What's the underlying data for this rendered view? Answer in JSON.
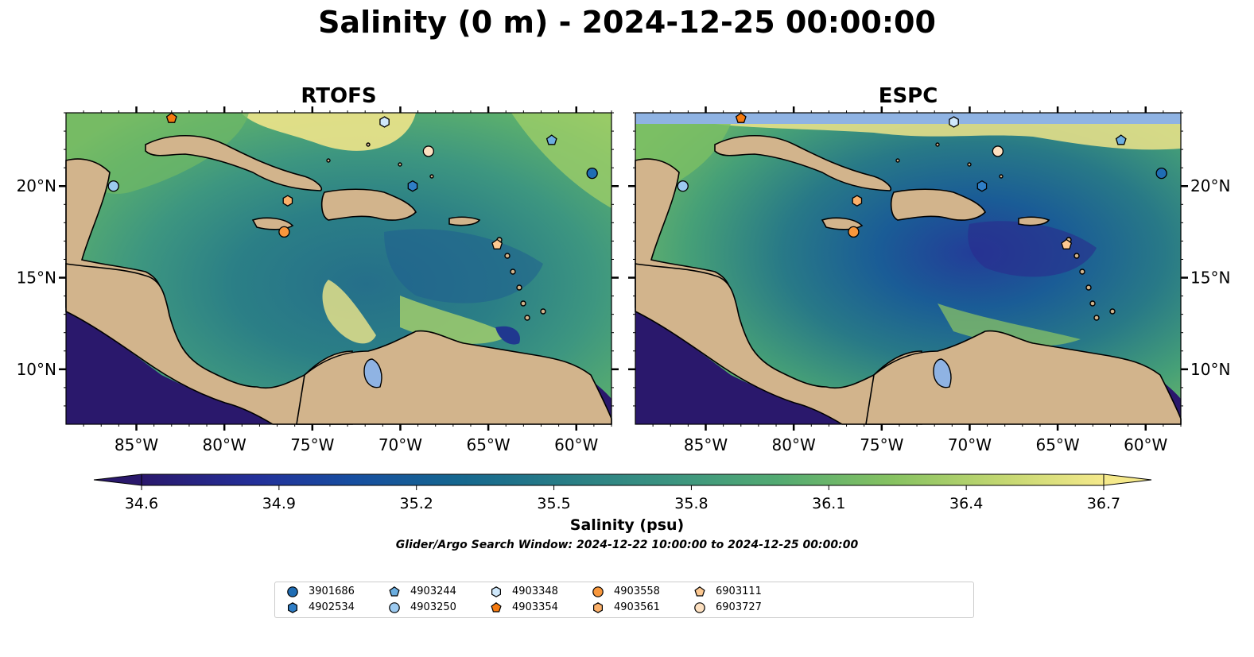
{
  "title": "Salinity (0 m) - 2024-12-25 00:00:00",
  "panels": [
    {
      "title": "RTOFS"
    },
    {
      "title": "ESPC"
    }
  ],
  "axes": {
    "lon_ticks": [
      "85°W",
      "80°W",
      "75°W",
      "70°W",
      "65°W",
      "60°W"
    ],
    "lat_ticks": [
      "20°N",
      "15°N",
      "10°N"
    ],
    "lon_range": [
      -89,
      -58
    ],
    "lat_range": [
      7,
      24
    ]
  },
  "colorbar": {
    "label": "Salinity (psu)",
    "ticks": [
      "34.6",
      "34.9",
      "35.2",
      "35.5",
      "35.8",
      "36.1",
      "36.4",
      "36.7"
    ],
    "range": [
      34.6,
      36.7
    ],
    "extend": "both",
    "colormap": "haline"
  },
  "search_window": "Glider/Argo Search Window: 2024-12-22 10:00:00 to 2024-12-25 00:00:00",
  "land_color": "#d2b48c",
  "floats": [
    {
      "id": "3901686",
      "marker": "circle",
      "color": "#1f6db4",
      "lon": -59.1,
      "lat": 20.7
    },
    {
      "id": "4902534",
      "marker": "hexagon",
      "color": "#2f7ec6",
      "lon": -69.3,
      "lat": 20.0
    },
    {
      "id": "4903244",
      "marker": "pentagon",
      "color": "#6baee0",
      "lon": -61.4,
      "lat": 22.5
    },
    {
      "id": "4903250",
      "marker": "circle",
      "color": "#9ccaf0",
      "lon": -86.3,
      "lat": 20.0
    },
    {
      "id": "4903348",
      "marker": "hexagon",
      "color": "#cfe8fb",
      "lon": -70.9,
      "lat": 23.5
    },
    {
      "id": "4903354",
      "marker": "pentagon",
      "color": "#f57a10",
      "lon": -83.0,
      "lat": 23.7
    },
    {
      "id": "4903558",
      "marker": "circle",
      "color": "#f8973c",
      "lon": -76.6,
      "lat": 17.5
    },
    {
      "id": "4903561",
      "marker": "hexagon",
      "color": "#fbb06a",
      "lon": -76.4,
      "lat": 19.2
    },
    {
      "id": "6903111",
      "marker": "pentagon",
      "color": "#fcc891",
      "lon": -64.5,
      "lat": 16.8
    },
    {
      "id": "6903727",
      "marker": "circle",
      "color": "#fde0c0",
      "lon": -68.4,
      "lat": 21.9
    }
  ]
}
